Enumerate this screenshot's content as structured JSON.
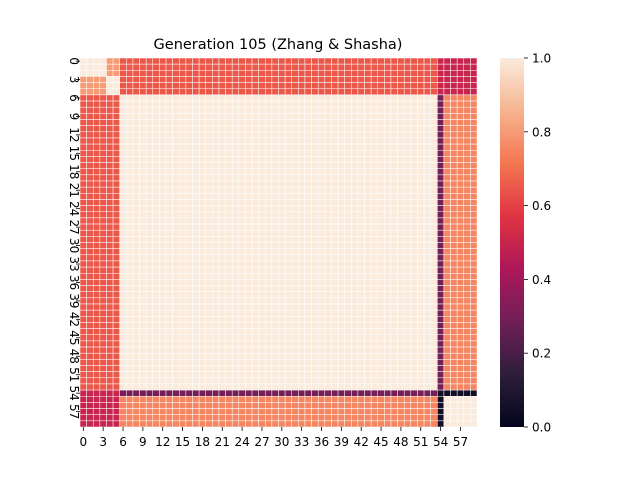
{
  "chart_data": {
    "type": "heatmap",
    "title": "Generation 105 (Zhang & Shasha)",
    "xlabel": "",
    "ylabel": "",
    "size": 60,
    "tick_step": 3,
    "x_tick_labels": [
      "0",
      "3",
      "6",
      "9",
      "12",
      "15",
      "18",
      "21",
      "24",
      "27",
      "30",
      "33",
      "36",
      "39",
      "42",
      "45",
      "48",
      "51",
      "54",
      "57"
    ],
    "y_tick_labels": [
      "0",
      "3",
      "6",
      "9",
      "12",
      "15",
      "18",
      "21",
      "24",
      "27",
      "30",
      "33",
      "36",
      "39",
      "42",
      "45",
      "48",
      "51",
      "54",
      "57"
    ],
    "colorbar": {
      "range": [
        0.0,
        1.0
      ],
      "tick_labels": [
        "0.0",
        "0.2",
        "0.4",
        "0.6",
        "0.8",
        "1.0"
      ],
      "colormap": "rocket",
      "colormap_stops": [
        "#03051a",
        "#2e1e3c",
        "#701f57",
        "#ad1759",
        "#e13342",
        "#f37651",
        "#f6b48f",
        "#faebdd"
      ]
    },
    "grid_lines_color": "#ffffff",
    "value_blocks": [
      {
        "rows": [
          0,
          53
        ],
        "cols": [
          0,
          53
        ],
        "value": 1.0,
        "note": "except rows/cols 0-5 region below"
      },
      {
        "rows": [
          0,
          2
        ],
        "cols": [
          0,
          3
        ],
        "value": 1.0
      },
      {
        "rows": [
          0,
          2
        ],
        "cols": [
          4,
          5
        ],
        "value": 0.8
      },
      {
        "rows": [
          3,
          5
        ],
        "cols": [
          0,
          3
        ],
        "value": 0.8
      },
      {
        "rows": [
          3,
          5
        ],
        "cols": [
          4,
          5
        ],
        "value": 1.0
      },
      {
        "rows": [
          0,
          5
        ],
        "cols": [
          6,
          53
        ],
        "value": 0.65
      },
      {
        "rows": [
          6,
          53
        ],
        "cols": [
          0,
          5
        ],
        "value": 0.65
      },
      {
        "rows": [
          0,
          5
        ],
        "cols": [
          54,
          59
        ],
        "value": 0.5
      },
      {
        "rows": [
          54,
          59
        ],
        "cols": [
          0,
          5
        ],
        "value": 0.5
      },
      {
        "rows": [
          6,
          53
        ],
        "cols": [
          54,
          54
        ],
        "value": 0.3
      },
      {
        "rows": [
          6,
          53
        ],
        "cols": [
          55,
          59
        ],
        "value": 0.75
      },
      {
        "rows": [
          54,
          54
        ],
        "cols": [
          6,
          53
        ],
        "value": 0.3
      },
      {
        "rows": [
          55,
          59
        ],
        "cols": [
          6,
          53
        ],
        "value": 0.75
      },
      {
        "rows": [
          54,
          59
        ],
        "cols": [
          54,
          54
        ],
        "value": 0.05
      },
      {
        "rows": [
          54,
          54
        ],
        "cols": [
          55,
          59
        ],
        "value": 0.05
      },
      {
        "rows": [
          55,
          59
        ],
        "cols": [
          55,
          59
        ],
        "value": 1.0
      }
    ]
  }
}
